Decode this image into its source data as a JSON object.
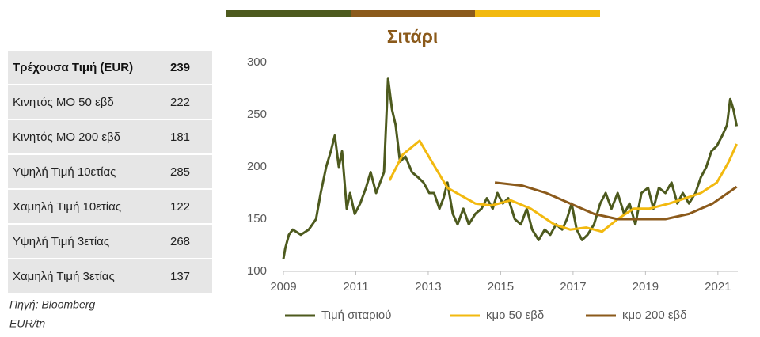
{
  "table": {
    "rows": [
      [
        "Τρέχουσα Τιμή (EUR)",
        239
      ],
      [
        "Κινητός ΜΟ 50 εβδ",
        222
      ],
      [
        "Κινητός ΜΟ 200 εβδ",
        181
      ],
      [
        "Υψηλή Τιμή 10ετίας",
        285
      ],
      [
        "Χαμηλή Τιμή 10ετίας",
        122
      ],
      [
        "Υψηλή Τιμή 3ετίας",
        268
      ],
      [
        "Χαμηλή Τιμή 3ετίας",
        137
      ]
    ]
  },
  "notes": {
    "source": "Πηγή: Bloomberg",
    "unit": "EUR/tn"
  },
  "chart_data": {
    "type": "line",
    "title": "Σιτάρι",
    "xlim": [
      2009,
      2021.55
    ],
    "xticks": [
      2009,
      2011,
      2013,
      2015,
      2017,
      2019,
      2021
    ],
    "ylim": [
      100,
      300
    ],
    "yticks": [
      100,
      150,
      200,
      250,
      300
    ],
    "grid": false,
    "series": [
      {
        "name": "Τιμή σιταριού",
        "color": "#4d5a1e",
        "x": [
          2009.0,
          2009.05,
          2009.15,
          2009.26,
          2009.48,
          2009.7,
          2009.9,
          2010.03,
          2010.18,
          2010.31,
          2010.42,
          2010.53,
          2010.62,
          2010.75,
          2010.84,
          2010.97,
          2011.12,
          2011.28,
          2011.41,
          2011.56,
          2011.67,
          2011.78,
          2011.89,
          2012.0,
          2012.1,
          2012.22,
          2012.37,
          2012.55,
          2012.72,
          2012.87,
          2013.03,
          2013.16,
          2013.31,
          2013.42,
          2013.53,
          2013.68,
          2013.81,
          2013.97,
          2014.12,
          2014.3,
          2014.47,
          2014.62,
          2014.78,
          2014.91,
          2015.06,
          2015.21,
          2015.39,
          2015.56,
          2015.72,
          2015.87,
          2016.05,
          2016.22,
          2016.37,
          2016.53,
          2016.7,
          2016.83,
          2016.96,
          2017.1,
          2017.25,
          2017.4,
          2017.58,
          2017.75,
          2017.9,
          2018.06,
          2018.23,
          2018.41,
          2018.56,
          2018.72,
          2018.89,
          2019.07,
          2019.22,
          2019.37,
          2019.55,
          2019.72,
          2019.88,
          2020.03,
          2020.2,
          2020.38,
          2020.53,
          2020.68,
          2020.82,
          2020.97,
          2021.12,
          2021.25,
          2021.34,
          2021.43,
          2021.52
        ],
        "values": [
          112,
          122,
          135,
          140,
          135,
          140,
          150,
          175,
          200,
          215,
          230,
          200,
          215,
          160,
          175,
          155,
          165,
          180,
          195,
          175,
          185,
          195,
          285,
          255,
          240,
          205,
          210,
          195,
          190,
          185,
          175,
          175,
          160,
          170,
          185,
          155,
          145,
          160,
          145,
          155,
          160,
          170,
          160,
          175,
          165,
          170,
          150,
          145,
          160,
          140,
          130,
          140,
          135,
          145,
          140,
          150,
          165,
          140,
          130,
          135,
          145,
          165,
          175,
          160,
          175,
          155,
          165,
          145,
          175,
          180,
          160,
          180,
          175,
          185,
          165,
          175,
          165,
          175,
          190,
          200,
          215,
          220,
          230,
          240,
          265,
          255,
          239
        ]
      },
      {
        "name": "κμο 50 εβδ",
        "color": "#f2b90f",
        "x": [
          2011.93,
          2012.3,
          2012.76,
          2013.1,
          2013.53,
          2014.3,
          2014.74,
          2015.28,
          2015.83,
          2016.48,
          2016.92,
          2017.36,
          2017.8,
          2018.23,
          2018.67,
          2019.1,
          2019.66,
          2020.1,
          2020.53,
          2020.97,
          2021.3,
          2021.52
        ],
        "values": [
          187,
          212,
          225,
          205,
          180,
          165,
          163,
          168,
          160,
          145,
          140,
          142,
          138,
          150,
          160,
          160,
          165,
          170,
          175,
          185,
          205,
          222
        ]
      },
      {
        "name": "κμο 200 εβδ",
        "color": "#8b5a1b",
        "x": [
          2014.84,
          2015.61,
          2016.26,
          2016.92,
          2017.58,
          2018.23,
          2018.89,
          2019.55,
          2020.2,
          2020.86,
          2021.52
        ],
        "values": [
          185,
          182,
          175,
          165,
          155,
          150,
          150,
          150,
          155,
          165,
          181
        ]
      }
    ]
  }
}
